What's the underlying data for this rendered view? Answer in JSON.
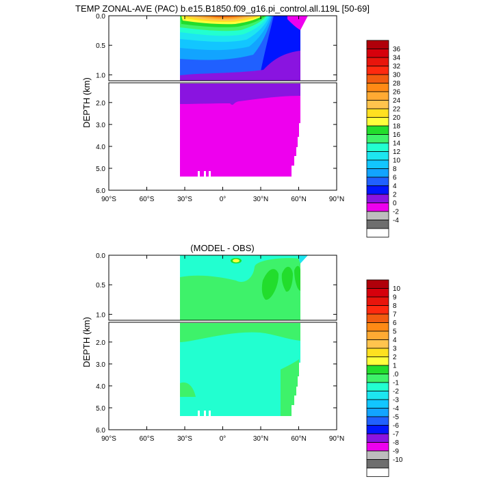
{
  "chart_data": [
    {
      "type": "contour",
      "title": "TEMP ZONAL-AVE (PAC) b.e15.B1850.f09_g16.pi_control.all.119L [50-69]",
      "ylabel": "DEPTH (km)",
      "x_ticks": [
        "90°S",
        "60°S",
        "30°S",
        "0°",
        "30°N",
        "60°N",
        "90°N"
      ],
      "x_tick_values": [
        -90,
        -60,
        -30,
        0,
        30,
        60,
        90
      ],
      "xlim": [
        -90,
        90
      ],
      "upper_yticks": [
        "0.0",
        "0.5",
        "1.0"
      ],
      "upper_ytick_values": [
        0,
        0.5,
        1.0
      ],
      "upper_ylim": [
        0,
        1.1
      ],
      "lower_yticks": [
        "2.0",
        "3.0",
        "4.0",
        "5.0",
        "6.0"
      ],
      "lower_ytick_values": [
        2,
        3,
        4,
        5,
        6
      ],
      "lower_ylim": [
        1.1,
        6.0
      ],
      "colorbar_labels": [
        "36",
        "34",
        "32",
        "30",
        "28",
        "26",
        "24",
        "22",
        "20",
        "18",
        "16",
        "14",
        "12",
        "10",
        "8",
        "6",
        "4",
        "2",
        "0",
        "-2",
        "-4"
      ],
      "colorbar_colors": [
        "#b0000a",
        "#d6000c",
        "#e8150c",
        "#ff2a0f",
        "#f25c10",
        "#ff8a15",
        "#ffaa33",
        "#ffc44e",
        "#ffe020",
        "#ffff3c",
        "#22dd2c",
        "#3ef26a",
        "#22ffd0",
        "#1de6f0",
        "#12c6ff",
        "#12a4ff",
        "#2060ff",
        "#0015ff",
        "#8a14e0",
        "#ee00ee",
        "#bdbdbd",
        "#6e6e6e",
        "#ffffff"
      ]
    },
    {
      "type": "contour",
      "title": "(MODEL - OBS)",
      "ylabel": "DEPTH (km)",
      "x_ticks": [
        "90°S",
        "60°S",
        "30°S",
        "0°",
        "30°N",
        "60°N",
        "90°N"
      ],
      "x_tick_values": [
        -90,
        -60,
        -30,
        0,
        30,
        60,
        90
      ],
      "xlim": [
        -90,
        90
      ],
      "upper_yticks": [
        "0.0",
        "0.5",
        "1.0"
      ],
      "upper_ytick_values": [
        0,
        0.5,
        1.0
      ],
      "upper_ylim": [
        0,
        1.1
      ],
      "lower_yticks": [
        "2.0",
        "3.0",
        "4.0",
        "5.0",
        "6.0"
      ],
      "lower_ytick_values": [
        2,
        3,
        4,
        5,
        6
      ],
      "lower_ylim": [
        1.1,
        6.0
      ],
      "colorbar_labels": [
        "10",
        "9",
        "8",
        "7",
        "6",
        "5",
        "4",
        "3",
        "2",
        "1",
        ".0",
        "-1",
        "-2",
        "-3",
        "-4",
        "-5",
        "-6",
        "-7",
        "-8",
        "-9",
        "-10"
      ],
      "colorbar_colors": [
        "#b0000a",
        "#d6000c",
        "#e8150c",
        "#ff2a0f",
        "#f25c10",
        "#ff8a15",
        "#ffaa33",
        "#ffc44e",
        "#ffe020",
        "#ffff3c",
        "#22dd2c",
        "#3ef26a",
        "#22ffd0",
        "#1de6f0",
        "#12c6ff",
        "#12a4ff",
        "#2060ff",
        "#0015ff",
        "#8a14e0",
        "#ee00ee",
        "#bdbdbd",
        "#6e6e6e",
        "#ffffff"
      ]
    }
  ]
}
